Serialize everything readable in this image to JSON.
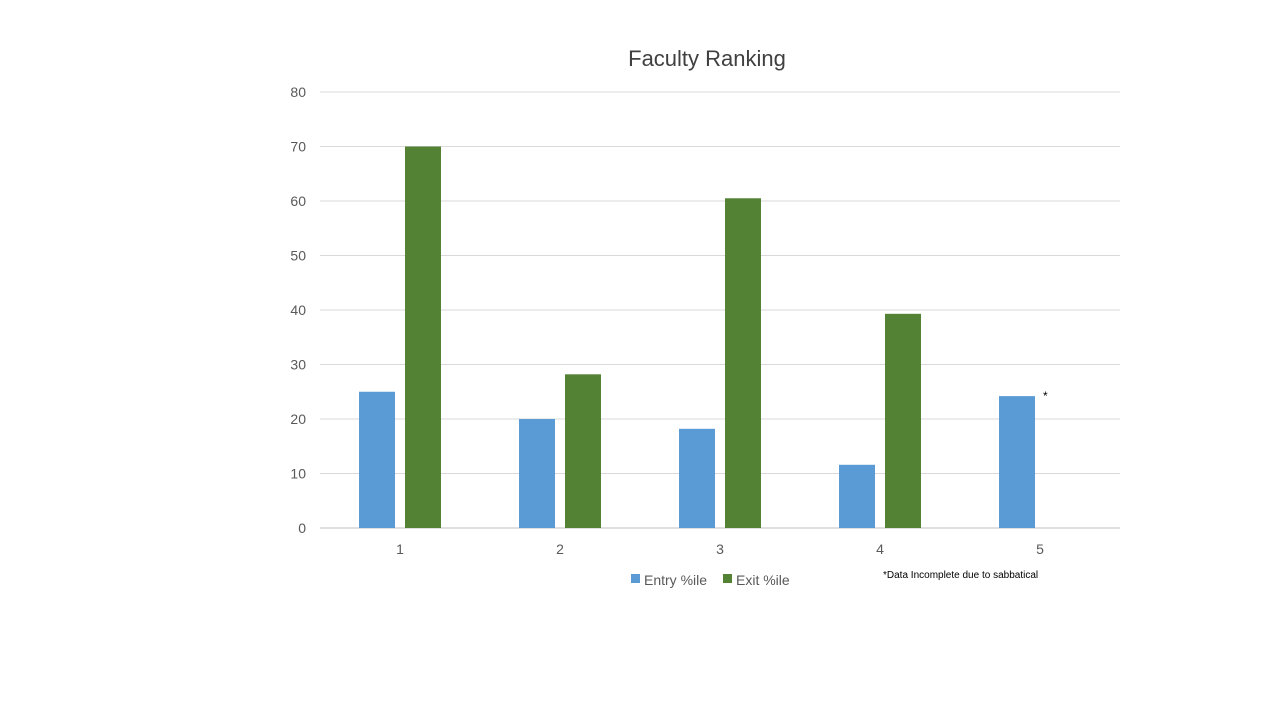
{
  "chart_data": {
    "type": "bar",
    "title": "Faculty Ranking",
    "xlabel": "",
    "ylabel": "",
    "categories": [
      "1",
      "2",
      "3",
      "4",
      "5"
    ],
    "ylim": [
      0,
      80
    ],
    "yticks": [
      0,
      10,
      20,
      30,
      40,
      50,
      60,
      70,
      80
    ],
    "grid": true,
    "legend_position": "bottom",
    "series": [
      {
        "name": "Entry %ile",
        "color": "#5B9BD5",
        "values": [
          25,
          20,
          18.2,
          11.6,
          24.2
        ]
      },
      {
        "name": "Exit %ile",
        "color": "#548235",
        "values": [
          70,
          28.2,
          60.5,
          39.3,
          null
        ]
      }
    ],
    "annotations": [
      {
        "text": "*",
        "category": "5"
      }
    ],
    "footnote": "*Data Incomplete due to sabbatical"
  }
}
